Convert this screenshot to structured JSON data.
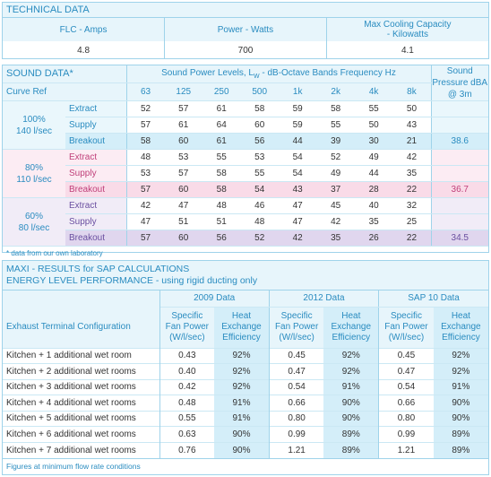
{
  "technical": {
    "title": "TECHNICAL DATA",
    "headers": [
      "FLC - Amps",
      "Power - Watts",
      "Max Cooling Capacity\n- Kilowatts"
    ],
    "values": [
      "4.8",
      "700",
      "4.1"
    ]
  },
  "sound": {
    "title": "SOUND DATA*",
    "band_header": "Sound Power Levels, L",
    "band_header_sub": "W",
    "band_header_tail": " - dB-Octave Bands Frequency Hz",
    "pressure_header": "Sound Pressure dBA @ 3m",
    "curve_ref": "Curve Ref",
    "freqs": [
      "63",
      "125",
      "250",
      "500",
      "1k",
      "2k",
      "4k",
      "8k"
    ],
    "groups": [
      {
        "label1": "100%",
        "label2": "140  l/sec",
        "rows": [
          {
            "name": "Extract",
            "vals": [
              "52",
              "57",
              "61",
              "58",
              "59",
              "58",
              "55",
              "50"
            ],
            "pressure": ""
          },
          {
            "name": "Supply",
            "vals": [
              "57",
              "61",
              "64",
              "60",
              "59",
              "55",
              "50",
              "43"
            ],
            "pressure": ""
          },
          {
            "name": "Breakout",
            "vals": [
              "58",
              "60",
              "61",
              "56",
              "44",
              "39",
              "30",
              "21"
            ],
            "pressure": "38.6"
          }
        ]
      },
      {
        "label1": "80%",
        "label2": "110  l/sec",
        "rows": [
          {
            "name": "Extract",
            "vals": [
              "48",
              "53",
              "55",
              "53",
              "54",
              "52",
              "49",
              "42"
            ],
            "pressure": ""
          },
          {
            "name": "Supply",
            "vals": [
              "53",
              "57",
              "58",
              "55",
              "54",
              "49",
              "44",
              "35"
            ],
            "pressure": ""
          },
          {
            "name": "Breakout",
            "vals": [
              "57",
              "60",
              "58",
              "54",
              "43",
              "37",
              "28",
              "22"
            ],
            "pressure": "36.7"
          }
        ]
      },
      {
        "label1": "60%",
        "label2": "80  l/sec",
        "rows": [
          {
            "name": "Extract",
            "vals": [
              "42",
              "47",
              "48",
              "46",
              "47",
              "45",
              "40",
              "32"
            ],
            "pressure": ""
          },
          {
            "name": "Supply",
            "vals": [
              "47",
              "51",
              "51",
              "48",
              "47",
              "42",
              "35",
              "25"
            ],
            "pressure": ""
          },
          {
            "name": "Breakout",
            "vals": [
              "57",
              "60",
              "56",
              "52",
              "42",
              "35",
              "26",
              "22"
            ],
            "pressure": "34.5"
          }
        ]
      }
    ],
    "footnote": "* data from our own laboratory"
  },
  "maxi": {
    "title1": "MAXI - RESULTS for SAP CALCULATIONS",
    "title2": "ENERGY LEVEL PERFORMANCE - using rigid ducting only",
    "col_groups": [
      "2009 Data",
      "2012 Data",
      "SAP 10 Data"
    ],
    "sub_fan": "Specific Fan Power (W/l/sec)",
    "sub_heat": "Heat Exchange Efficiency",
    "row_header": "Exhaust Terminal Configuration",
    "rows": [
      {
        "cfg": "Kitchen + 1 additional wet room",
        "v": [
          "0.43",
          "92%",
          "0.45",
          "92%",
          "0.45",
          "92%"
        ]
      },
      {
        "cfg": "Kitchen + 2 additional wet rooms",
        "v": [
          "0.40",
          "92%",
          "0.47",
          "92%",
          "0.47",
          "92%"
        ]
      },
      {
        "cfg": "Kitchen + 3 additional wet rooms",
        "v": [
          "0.42",
          "92%",
          "0.54",
          "91%",
          "0.54",
          "91%"
        ]
      },
      {
        "cfg": "Kitchen + 4 additional wet rooms",
        "v": [
          "0.48",
          "91%",
          "0.66",
          "90%",
          "0.66",
          "90%"
        ]
      },
      {
        "cfg": "Kitchen + 5 additional wet rooms",
        "v": [
          "0.55",
          "91%",
          "0.80",
          "90%",
          "0.80",
          "90%"
        ]
      },
      {
        "cfg": "Kitchen + 6 additional wet rooms",
        "v": [
          "0.63",
          "90%",
          "0.99",
          "89%",
          "0.99",
          "89%"
        ]
      },
      {
        "cfg": "Kitchen + 7 additional wet rooms",
        "v": [
          "0.76",
          "90%",
          "1.21",
          "89%",
          "1.21",
          "89%"
        ]
      }
    ],
    "footnote": "Figures at minimum flow rate conditions"
  },
  "colors": {
    "accent": "#2a8cc0",
    "blue_row": "#d4eef9",
    "pink_row": "#f9dbe8",
    "purple_row": "#e0d6ee"
  }
}
